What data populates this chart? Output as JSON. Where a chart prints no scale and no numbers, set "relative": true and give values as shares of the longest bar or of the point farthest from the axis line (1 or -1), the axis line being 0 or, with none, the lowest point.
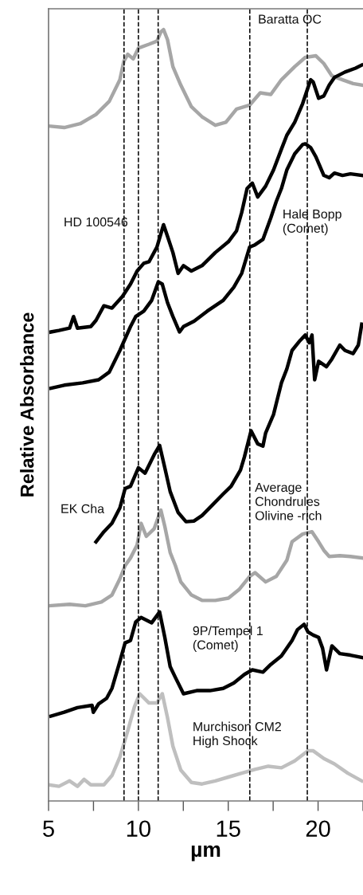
{
  "chart_data": {
    "type": "line",
    "relative": true,
    "xlabel": "µm",
    "ylabel": "Relative Absorbance",
    "xlim": [
      5,
      22.5
    ],
    "xticks": [
      5,
      {
        "value": 7.5,
        "label": null
      },
      10,
      {
        "value": 12.5,
        "label": null
      },
      15,
      {
        "value": 17.5,
        "label": null
      },
      20,
      {
        "value": 22.5,
        "label": null
      }
    ],
    "grid": false,
    "legend": false,
    "marker": "none",
    "line_style": "solid",
    "ref_lines": [
      {
        "axis": "x",
        "value": 9.2,
        "color": "#000000",
        "line_style": "dashed"
      },
      {
        "axis": "x",
        "value": 10.0,
        "color": "#000000",
        "line_style": "dashed"
      },
      {
        "axis": "x",
        "value": 11.1,
        "color": "#000000",
        "line_style": "dashed"
      },
      {
        "axis": "x",
        "value": 16.2,
        "color": "#000000",
        "line_style": "dashed"
      },
      {
        "axis": "x",
        "value": 19.4,
        "color": "#000000",
        "line_style": "dashed"
      }
    ],
    "series": [
      {
        "name": "Baratta OC",
        "color": "#a6a6a6",
        "x": [
          5.0,
          5.87,
          6.76,
          7.64,
          8.38,
          8.97,
          9.19,
          9.41,
          9.71,
          10.0,
          10.59,
          11.03,
          11.25,
          11.4,
          11.62,
          11.92,
          12.36,
          12.95,
          13.54,
          14.28,
          14.87,
          15.46,
          16.19,
          16.78,
          17.37,
          17.96,
          18.7,
          19.29,
          19.88,
          20.32,
          20.77,
          21.36,
          21.95,
          22.43
        ],
        "values": [
          0.875,
          0.873,
          0.878,
          0.89,
          0.907,
          0.935,
          0.959,
          0.968,
          0.962,
          0.976,
          0.981,
          0.985,
          0.997,
          1.0,
          0.987,
          0.952,
          0.928,
          0.9,
          0.887,
          0.876,
          0.88,
          0.897,
          0.902,
          0.918,
          0.916,
          0.935,
          0.952,
          0.964,
          0.966,
          0.956,
          0.94,
          0.935,
          0.93,
          0.928
        ]
      },
      {
        "name": "HD 100546",
        "color": "#000000",
        "x": [
          5.13,
          5.58,
          6.17,
          6.39,
          6.61,
          7.35,
          7.64,
          8.08,
          8.53,
          9.11,
          9.56,
          9.93,
          10.3,
          10.59,
          11.03,
          11.4,
          11.62,
          11.92,
          12.21,
          12.51,
          12.95,
          13.54,
          14.28,
          15.01,
          15.46,
          15.75,
          16.05,
          16.34,
          16.64,
          17.08,
          17.52,
          17.96,
          18.26,
          18.7,
          19.14,
          19.44,
          19.59,
          19.73,
          20.03,
          20.32,
          20.62,
          20.91,
          21.5,
          22.09,
          22.43
        ],
        "values": [
          0.608,
          0.61,
          0.613,
          0.628,
          0.613,
          0.615,
          0.623,
          0.642,
          0.639,
          0.654,
          0.67,
          0.687,
          0.697,
          0.699,
          0.718,
          0.747,
          0.732,
          0.711,
          0.684,
          0.694,
          0.687,
          0.694,
          0.711,
          0.725,
          0.739,
          0.763,
          0.794,
          0.801,
          0.783,
          0.797,
          0.818,
          0.845,
          0.863,
          0.88,
          0.904,
          0.925,
          0.935,
          0.932,
          0.911,
          0.914,
          0.928,
          0.938,
          0.945,
          0.95,
          0.954
        ]
      },
      {
        "name": "Hale Bopp\n(Comet)",
        "color": "#000000",
        "x": [
          5.13,
          5.87,
          6.9,
          7.79,
          8.38,
          8.97,
          9.56,
          9.85,
          10.3,
          10.74,
          11.11,
          11.33,
          11.62,
          11.92,
          12.29,
          12.51,
          13.1,
          13.83,
          14.72,
          15.31,
          15.75,
          16.19,
          16.49,
          16.93,
          17.37,
          17.67,
          17.96,
          18.26,
          18.7,
          19.14,
          19.29,
          19.59,
          19.88,
          20.32,
          20.62,
          20.91,
          21.36,
          21.8,
          22.43
        ],
        "values": [
          0.535,
          0.539,
          0.542,
          0.546,
          0.556,
          0.584,
          0.615,
          0.628,
          0.635,
          0.649,
          0.673,
          0.67,
          0.646,
          0.628,
          0.608,
          0.615,
          0.622,
          0.635,
          0.649,
          0.666,
          0.684,
          0.718,
          0.721,
          0.728,
          0.756,
          0.777,
          0.794,
          0.818,
          0.839,
          0.851,
          0.852,
          0.847,
          0.835,
          0.811,
          0.808,
          0.814,
          0.811,
          0.813,
          0.811
        ]
      },
      {
        "name": "EK Cha",
        "color": "#000000",
        "x": [
          7.64,
          8.08,
          8.53,
          8.97,
          9.26,
          9.56,
          10.0,
          10.37,
          10.88,
          11.18,
          11.47,
          11.77,
          12.21,
          12.65,
          13.1,
          13.54,
          14.13,
          14.72,
          15.16,
          15.68,
          15.9,
          16.27,
          16.64,
          16.93,
          17.08,
          17.52,
          17.67,
          17.96,
          18.26,
          18.55,
          19.0,
          19.29,
          19.51,
          19.66,
          19.81,
          20.03,
          20.47,
          20.77,
          21.21,
          21.5,
          21.95,
          22.24,
          22.43
        ],
        "values": [
          0.336,
          0.349,
          0.36,
          0.38,
          0.405,
          0.408,
          0.432,
          0.425,
          0.449,
          0.461,
          0.432,
          0.401,
          0.374,
          0.362,
          0.363,
          0.37,
          0.384,
          0.398,
          0.408,
          0.429,
          0.446,
          0.48,
          0.463,
          0.46,
          0.477,
          0.501,
          0.515,
          0.542,
          0.56,
          0.584,
          0.597,
          0.604,
          0.594,
          0.604,
          0.546,
          0.57,
          0.563,
          0.573,
          0.591,
          0.584,
          0.58,
          0.591,
          0.618
        ]
      },
      {
        "name": "Average\nChondrules\nOlivine -rich",
        "color": "#a6a6a6",
        "x": [
          5.0,
          6.17,
          7.05,
          7.94,
          8.53,
          8.97,
          9.26,
          9.56,
          9.93,
          10.15,
          10.44,
          10.88,
          11.25,
          11.47,
          11.77,
          12.06,
          12.36,
          12.95,
          13.54,
          14.28,
          15.01,
          15.6,
          16.19,
          16.49,
          17.08,
          17.67,
          18.26,
          18.55,
          19.14,
          19.66,
          20.03,
          20.32,
          20.62,
          21.21,
          21.8,
          22.43
        ],
        "values": [
          0.253,
          0.255,
          0.253,
          0.258,
          0.267,
          0.288,
          0.305,
          0.315,
          0.332,
          0.36,
          0.343,
          0.353,
          0.377,
          0.356,
          0.322,
          0.305,
          0.284,
          0.267,
          0.26,
          0.26,
          0.263,
          0.274,
          0.291,
          0.296,
          0.284,
          0.291,
          0.312,
          0.336,
          0.346,
          0.349,
          0.336,
          0.325,
          0.317,
          0.318,
          0.317,
          0.315
        ]
      },
      {
        "name": "9P/Tempel 1\n(Comet)",
        "color": "#000000",
        "x": [
          5.13,
          5.87,
          6.61,
          7.42,
          7.49,
          7.79,
          8.23,
          8.53,
          8.97,
          9.26,
          9.56,
          9.85,
          10.15,
          10.74,
          11.18,
          11.47,
          11.77,
          12.06,
          12.51,
          13.24,
          13.98,
          14.72,
          15.31,
          15.9,
          16.34,
          16.93,
          17.37,
          17.96,
          18.55,
          18.85,
          19.22,
          19.44,
          19.73,
          20.03,
          20.25,
          20.47,
          20.77,
          21.21,
          21.8,
          22.43
        ],
        "values": [
          0.11,
          0.115,
          0.121,
          0.124,
          0.115,
          0.126,
          0.133,
          0.146,
          0.181,
          0.205,
          0.208,
          0.232,
          0.238,
          0.231,
          0.245,
          0.212,
          0.174,
          0.16,
          0.139,
          0.143,
          0.143,
          0.146,
          0.153,
          0.164,
          0.17,
          0.167,
          0.177,
          0.188,
          0.208,
          0.222,
          0.229,
          0.219,
          0.215,
          0.212,
          0.198,
          0.17,
          0.201,
          0.191,
          0.189,
          0.186
        ]
      },
      {
        "name": "Murchison CM2\nHigh Shock",
        "color": "#bfbfbf",
        "x": [
          5.0,
          5.58,
          6.17,
          6.61,
          6.98,
          7.35,
          8.08,
          8.53,
          8.97,
          9.41,
          9.78,
          10.07,
          10.59,
          11.03,
          11.33,
          11.62,
          11.92,
          12.36,
          12.95,
          13.54,
          14.28,
          15.01,
          15.75,
          16.49,
          17.23,
          17.96,
          18.7,
          19.44,
          19.73,
          20.32,
          20.91,
          21.65,
          22.43
        ],
        "values": [
          0.021,
          0.019,
          0.026,
          0.019,
          0.028,
          0.021,
          0.021,
          0.033,
          0.057,
          0.091,
          0.122,
          0.139,
          0.127,
          0.127,
          0.139,
          0.108,
          0.071,
          0.04,
          0.024,
          0.022,
          0.026,
          0.031,
          0.036,
          0.041,
          0.045,
          0.043,
          0.052,
          0.065,
          0.065,
          0.055,
          0.048,
          0.036,
          0.026
        ]
      }
    ]
  }
}
